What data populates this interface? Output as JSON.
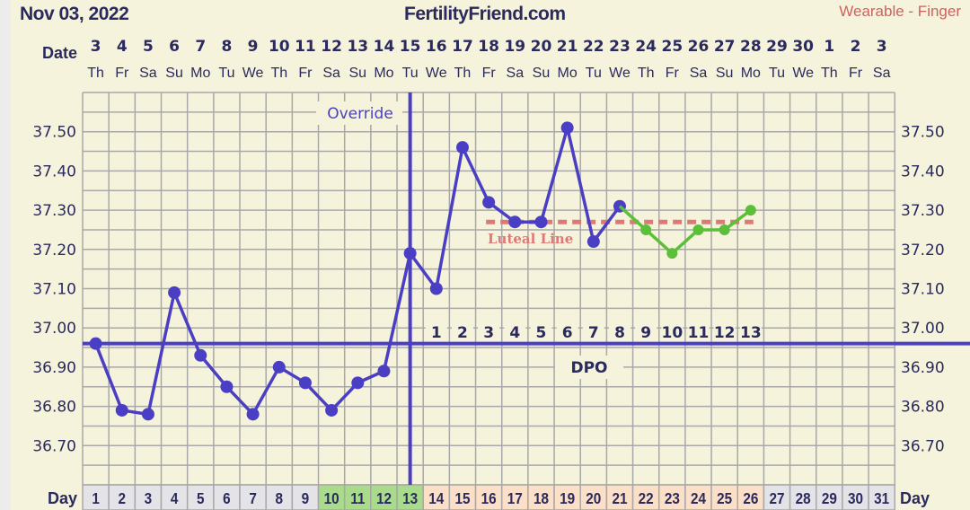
{
  "header": {
    "date": "Nov 03, 2022",
    "site": "FertilityFriend.com",
    "source": "Wearable - Finger"
  },
  "chart_data": {
    "type": "line",
    "row_labels": {
      "date": "Date",
      "day": "Day"
    },
    "dates": [
      "3",
      "4",
      "5",
      "6",
      "7",
      "8",
      "9",
      "10",
      "11",
      "12",
      "13",
      "14",
      "15",
      "16",
      "17",
      "18",
      "19",
      "20",
      "21",
      "22",
      "23",
      "24",
      "25",
      "26",
      "27",
      "28",
      "29",
      "30",
      "1",
      "2",
      "3"
    ],
    "weekdays": [
      "Th",
      "Fr",
      "Sa",
      "Su",
      "Mo",
      "Tu",
      "We",
      "Th",
      "Fr",
      "Sa",
      "Su",
      "Mo",
      "Tu",
      "We",
      "Th",
      "Fr",
      "Sa",
      "Su",
      "Mo",
      "Tu",
      "We",
      "Th",
      "Fr",
      "Sa",
      "Su",
      "Mo",
      "Tu",
      "We",
      "Th",
      "Fr",
      "Sa"
    ],
    "cycle_days": [
      1,
      2,
      3,
      4,
      5,
      6,
      7,
      8,
      9,
      10,
      11,
      12,
      13,
      14,
      15,
      16,
      17,
      18,
      19,
      20,
      21,
      22,
      23,
      24,
      25,
      26,
      27,
      28,
      29,
      30,
      31
    ],
    "fertile_days": [
      10,
      11,
      12,
      13
    ],
    "luteal_days": [
      14,
      15,
      16,
      17,
      18,
      19,
      20,
      21,
      22,
      23,
      24,
      25,
      26
    ],
    "y_ticks": [
      "37.50",
      "37.40",
      "37.30",
      "37.20",
      "37.10",
      "37.00",
      "36.90",
      "36.80",
      "36.70"
    ],
    "ylim": [
      36.6,
      37.6
    ],
    "series": [
      {
        "color": "#4a3fc4",
        "points": [
          [
            1,
            36.96
          ],
          [
            2,
            36.79
          ],
          [
            3,
            36.78
          ],
          [
            4,
            37.09
          ],
          [
            5,
            36.93
          ],
          [
            6,
            36.85
          ],
          [
            7,
            36.78
          ],
          [
            8,
            36.9
          ],
          [
            9,
            36.86
          ],
          [
            10,
            36.79
          ],
          [
            11,
            36.86
          ],
          [
            12,
            36.89
          ],
          [
            13,
            37.19
          ],
          [
            14,
            37.1
          ],
          [
            15,
            37.46
          ],
          [
            16,
            37.32
          ],
          [
            17,
            37.27
          ],
          [
            18,
            37.27
          ],
          [
            19,
            37.51
          ],
          [
            20,
            37.22
          ],
          [
            21,
            37.31
          ]
        ]
      },
      {
        "color": "#5cbf3a",
        "points": [
          [
            21,
            37.31
          ],
          [
            22,
            37.25
          ],
          [
            23,
            37.19
          ],
          [
            24,
            37.25
          ],
          [
            25,
            37.25
          ],
          [
            26,
            37.3
          ]
        ]
      }
    ],
    "coverline": {
      "value": 36.96,
      "label": "DPO",
      "color": "#4a3fc4"
    },
    "ovulation": {
      "day": 13,
      "label": "Override"
    },
    "luteal_line": {
      "value": 37.27,
      "from_day": 16,
      "to_day": 26,
      "label": "Luteal Line",
      "color": "#e07878"
    },
    "dpo_labels": [
      "1",
      "2",
      "3",
      "4",
      "5",
      "6",
      "7",
      "8",
      "9",
      "10",
      "11",
      "12",
      "13"
    ]
  }
}
